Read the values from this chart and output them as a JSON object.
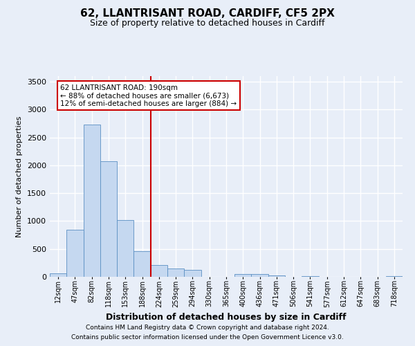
{
  "title1": "62, LLANTRISANT ROAD, CARDIFF, CF5 2PX",
  "title2": "Size of property relative to detached houses in Cardiff",
  "xlabel": "Distribution of detached houses by size in Cardiff",
  "ylabel": "Number of detached properties",
  "bar_categories": [
    "12sqm",
    "47sqm",
    "82sqm",
    "118sqm",
    "153sqm",
    "188sqm",
    "224sqm",
    "259sqm",
    "294sqm",
    "330sqm",
    "365sqm",
    "400sqm",
    "436sqm",
    "471sqm",
    "506sqm",
    "541sqm",
    "577sqm",
    "612sqm",
    "647sqm",
    "683sqm",
    "718sqm"
  ],
  "bar_values": [
    60,
    850,
    2730,
    2070,
    1020,
    460,
    210,
    150,
    130,
    0,
    0,
    55,
    55,
    30,
    0,
    10,
    0,
    0,
    0,
    0,
    15
  ],
  "bar_color": "#c5d8f0",
  "bar_edgecolor": "#5a8fc2",
  "subject_index": 5,
  "subject_label": "62 LLANTRISANT ROAD: 190sqm",
  "annotation_line1": "← 88% of detached houses are smaller (6,673)",
  "annotation_line2": "12% of semi-detached houses are larger (884) →",
  "vline_color": "#cc0000",
  "annotation_box_edgecolor": "#cc0000",
  "ylim": [
    0,
    3600
  ],
  "yticks": [
    0,
    500,
    1000,
    1500,
    2000,
    2500,
    3000,
    3500
  ],
  "bg_color": "#e8eef8",
  "plot_bg_color": "#e8eef8",
  "grid_color": "#ffffff",
  "footer1": "Contains HM Land Registry data © Crown copyright and database right 2024.",
  "footer2": "Contains public sector information licensed under the Open Government Licence v3.0."
}
